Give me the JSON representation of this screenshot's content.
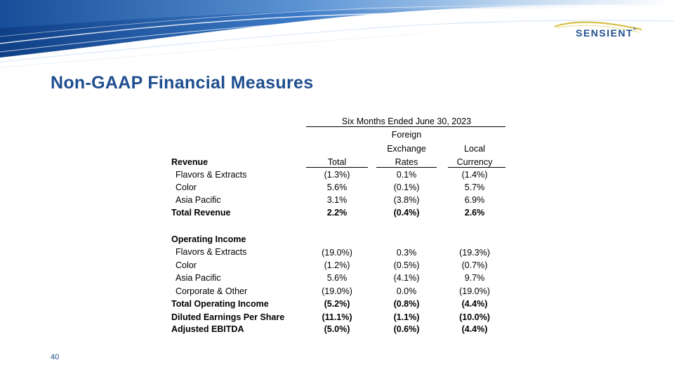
{
  "logo": {
    "name": "SENSIENT",
    "tm": "®"
  },
  "title": "Non-GAAP Financial Measures",
  "page_number": "40",
  "table": {
    "period_header": "Six Months Ended June 30, 2023",
    "col_headers": {
      "total": "Total",
      "fx_line1": "Foreign",
      "fx_line2": "Exchange",
      "fx_line3": "Rates",
      "local_line1": "Local",
      "local_line2": "Currency"
    },
    "revenue_label": "Revenue",
    "revenue_rows": [
      {
        "label": "Flavors & Extracts",
        "total": "(1.3%)",
        "fx": "0.1%",
        "local": "(1.4%)"
      },
      {
        "label": "Color",
        "total": "5.6%",
        "fx": "(0.1%)",
        "local": "5.7%"
      },
      {
        "label": "Asia Pacific",
        "total": "3.1%",
        "fx": "(3.8%)",
        "local": "6.9%"
      }
    ],
    "total_revenue": {
      "label": "Total Revenue",
      "total": "2.2%",
      "fx": "(0.4%)",
      "local": "2.6%"
    },
    "operating_income_label": "Operating Income",
    "operating_rows": [
      {
        "label": "Flavors & Extracts",
        "total": "(19.0%)",
        "fx": "0.3%",
        "local": "(19.3%)"
      },
      {
        "label": "Color",
        "total": "(1.2%)",
        "fx": "(0.5%)",
        "local": "(0.7%)"
      },
      {
        "label": "Asia Pacific",
        "total": "5.6%",
        "fx": "(4.1%)",
        "local": "9.7%"
      },
      {
        "label": "Corporate & Other",
        "total": "(19.0%)",
        "fx": "0.0%",
        "local": "(19.0%)"
      }
    ],
    "total_operating": {
      "label": "Total Operating Income",
      "total": "(5.2%)",
      "fx": "(0.8%)",
      "local": "(4.4%)"
    },
    "diluted_eps": {
      "label": "Diluted Earnings Per Share",
      "total": "(11.1%)",
      "fx": "(1.1%)",
      "local": "(10.0%)"
    },
    "adjusted_ebitda": {
      "label": "Adjusted EBITDA",
      "total": "(5.0%)",
      "fx": "(0.6%)",
      "local": "(4.4%)"
    }
  },
  "colors": {
    "brand_blue": "#1f4e8f",
    "banner_blue": "#2a63b0",
    "logo_gold": "#d8c24a"
  }
}
